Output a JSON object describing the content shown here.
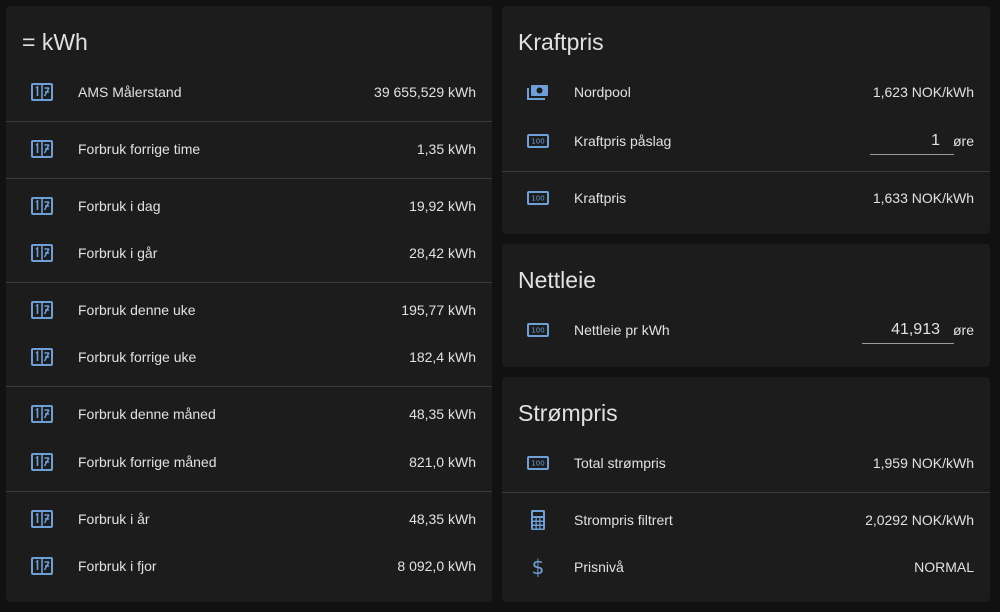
{
  "energy_card": {
    "title": "= kWh",
    "rows": [
      {
        "label": "AMS Målerstand",
        "value": "39 655,529 kWh",
        "icon": "meter-icon"
      },
      {
        "label": "Forbruk forrige time",
        "value": "1,35 kWh",
        "icon": "meter-icon"
      },
      {
        "label": "Forbruk i dag",
        "value": "19,92 kWh",
        "icon": "meter-icon"
      },
      {
        "label": "Forbruk i går",
        "value": "28,42 kWh",
        "icon": "meter-icon"
      },
      {
        "label": "Forbruk denne uke",
        "value": "195,77 kWh",
        "icon": "meter-icon"
      },
      {
        "label": "Forbruk forrige uke",
        "value": "182,4 kWh",
        "icon": "meter-icon"
      },
      {
        "label": "Forbruk denne måned",
        "value": "48,35 kWh",
        "icon": "meter-icon"
      },
      {
        "label": "Forbruk forrige måned",
        "value": "821,0 kWh",
        "icon": "meter-icon"
      },
      {
        "label": "Forbruk i år",
        "value": "48,35 kWh",
        "icon": "meter-icon"
      },
      {
        "label": "Forbruk i fjor",
        "value": "8 092,0 kWh",
        "icon": "meter-icon"
      }
    ]
  },
  "kraftpris_card": {
    "title": "Kraftpris",
    "rows": [
      {
        "label": "Nordpool",
        "value": "1,623 NOK/kWh",
        "icon": "cash-icon"
      },
      {
        "label": "Kraftpris påslag",
        "input_value": "1",
        "unit": "øre",
        "icon": "cash-100-icon"
      },
      {
        "label": "Kraftpris",
        "value": "1,633 NOK/kWh",
        "icon": "cash-100-icon"
      }
    ]
  },
  "nettleie_card": {
    "title": "Nettleie",
    "rows": [
      {
        "label": "Nettleie pr kWh",
        "input_value": "41,913",
        "unit": "øre",
        "icon": "cash-100-icon"
      }
    ]
  },
  "strompris_card": {
    "title": "Strømpris",
    "rows": [
      {
        "label": "Total strømpris",
        "value": "1,959 NOK/kWh",
        "icon": "cash-100-icon"
      },
      {
        "label": "Strompris filtrert",
        "value": "2,0292 NOK/kWh",
        "icon": "calculator-icon"
      },
      {
        "label": "Prisnivå",
        "value": "NORMAL",
        "icon": "currency-usd-icon"
      }
    ]
  },
  "colors": {
    "icon": "#6e9fd6",
    "card_bg": "#1c1c1c",
    "page_bg": "#111111",
    "divider": "#3a3a3a",
    "text": "#e1e1e1"
  }
}
